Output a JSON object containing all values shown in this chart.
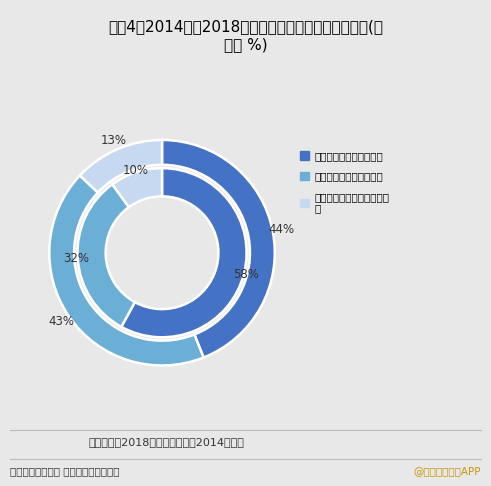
{
  "title": "图表4：2014年和2018年中国垃圾无害化处理能力结构(单\n位： %)",
  "outer_values": [
    44,
    43,
    13
  ],
  "inner_values": [
    58,
    32,
    10
  ],
  "outer_labels": [
    "44%",
    "43%",
    "13%"
  ],
  "inner_labels": [
    "58%",
    "32%",
    "10%"
  ],
  "colors": [
    "#4472c4",
    "#6baed6",
    "#c6d9f1"
  ],
  "legend_labels": [
    "垃圾填埋无害化处理能力",
    "垃圾焚烧无害化处理能力",
    "垃圾综合处理无害化处理能力"
  ],
  "legend_label3": "垃圾综合处理无害化处理能\n力",
  "note": "注：外环为2018年数据，内环为2014年数据",
  "source": "资料来源：住建部 前瞻产业研究院整理",
  "source_right": "@前瞻经济学人APP",
  "bg_color": "#e8e8e8",
  "title_fontsize": 11,
  "label_fontsize": 8.5,
  "note_fontsize": 8,
  "source_fontsize": 7.5
}
